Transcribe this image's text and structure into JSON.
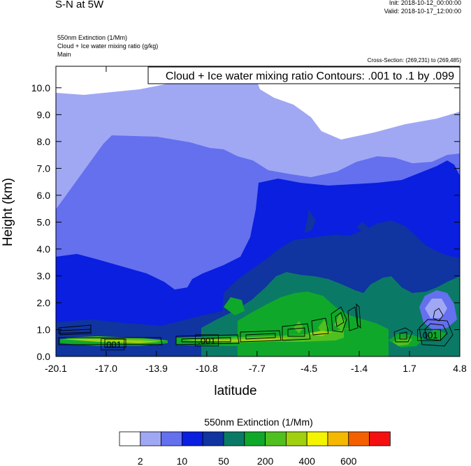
{
  "header": {
    "title": "S-N at 5W",
    "init": "Init: 2018-10-12_00:00:00",
    "valid": "Valid: 2018-10-17_12:00:00",
    "field1": "550nm Extinction   (1/Mm)",
    "field2": "Cloud + Ice water mixing ratio   (g/kg)",
    "field3": "Main",
    "cross_section": "Cross-Section: (269,231) to (269,485)"
  },
  "chart_data": {
    "type": "heatmap",
    "contour_label": "Cloud + Ice water mixing ratio Contours: .001 to .1 by .099",
    "xlabel": "latitude",
    "ylabel": "Height (km)",
    "xlim": [
      -20.1,
      4.8
    ],
    "ylim": [
      0.0,
      10.8
    ],
    "x_ticks": [
      "-20.1",
      "-17.0",
      "-13.9",
      "-10.8",
      "-7.7",
      "-4.5",
      "-1.4",
      "1.7",
      "4.8"
    ],
    "x_tick_values": [
      -20.1,
      -17.0,
      -13.9,
      -10.8,
      -7.7,
      -4.5,
      -1.4,
      1.7,
      4.8
    ],
    "y_ticks": [
      "0.0",
      "1.0",
      "2.0",
      "3.0",
      "4.0",
      "5.0",
      "6.0",
      "7.0",
      "8.0",
      "9.0",
      "10.0"
    ],
    "y_tick_values": [
      0,
      1,
      2,
      3,
      4,
      5,
      6,
      7,
      8,
      9,
      10
    ],
    "contour_value_labels": [
      {
        "text": ".001",
        "x": -16.6,
        "y": 0.45
      },
      {
        "text": ".001",
        "x": -10.8,
        "y": 0.6
      },
      {
        "text": ".001",
        "x": 2.9,
        "y": 0.8
      }
    ],
    "colorbar": {
      "title": "550nm Extinction  (1/Mm)",
      "colors": [
        "#ffffff",
        "#a0a8f4",
        "#6470ee",
        "#0a1fdf",
        "#1034a0",
        "#0a7a66",
        "#10a82a",
        "#50c020",
        "#a0d010",
        "#f4f400",
        "#f4b800",
        "#f46000",
        "#f41010"
      ],
      "labels": [
        "2",
        "10",
        "50",
        "200",
        "400",
        "600"
      ]
    }
  }
}
